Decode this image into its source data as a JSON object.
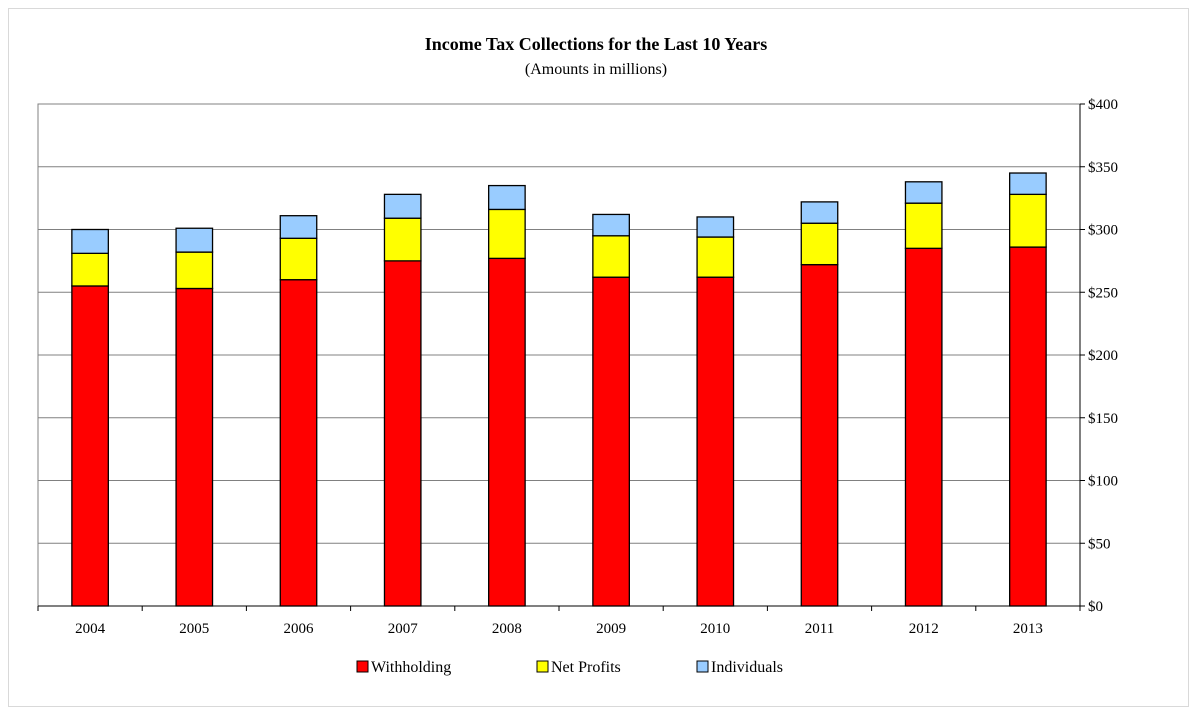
{
  "chart_data": {
    "type": "bar",
    "stacked": true,
    "title": "Income Tax Collections for the Last 10 Years",
    "subtitle": "(Amounts in millions)",
    "categories": [
      "2004",
      "2005",
      "2006",
      "2007",
      "2008",
      "2009",
      "2010",
      "2011",
      "2012",
      "2013"
    ],
    "series": [
      {
        "name": "Withholding",
        "color": "#ff0000",
        "values": [
          255,
          253,
          260,
          275,
          277,
          262,
          262,
          272,
          285,
          286
        ]
      },
      {
        "name": "Net Profits",
        "color": "#ffff00",
        "values": [
          26,
          29,
          33,
          34,
          39,
          33,
          32,
          33,
          36,
          42
        ]
      },
      {
        "name": "Individuals",
        "color": "#99ccff",
        "values": [
          19,
          19,
          18,
          19,
          19,
          17,
          16,
          17,
          17,
          17
        ]
      }
    ],
    "ylim": [
      0,
      400
    ],
    "yticks": [
      0,
      50,
      100,
      150,
      200,
      250,
      300,
      350,
      400
    ],
    "ytick_labels": [
      "$0",
      "$50",
      "$100",
      "$150",
      "$200",
      "$250",
      "$300",
      "$350",
      "$400"
    ],
    "y_axis_side": "right",
    "grid": true,
    "legend_position": "bottom"
  }
}
